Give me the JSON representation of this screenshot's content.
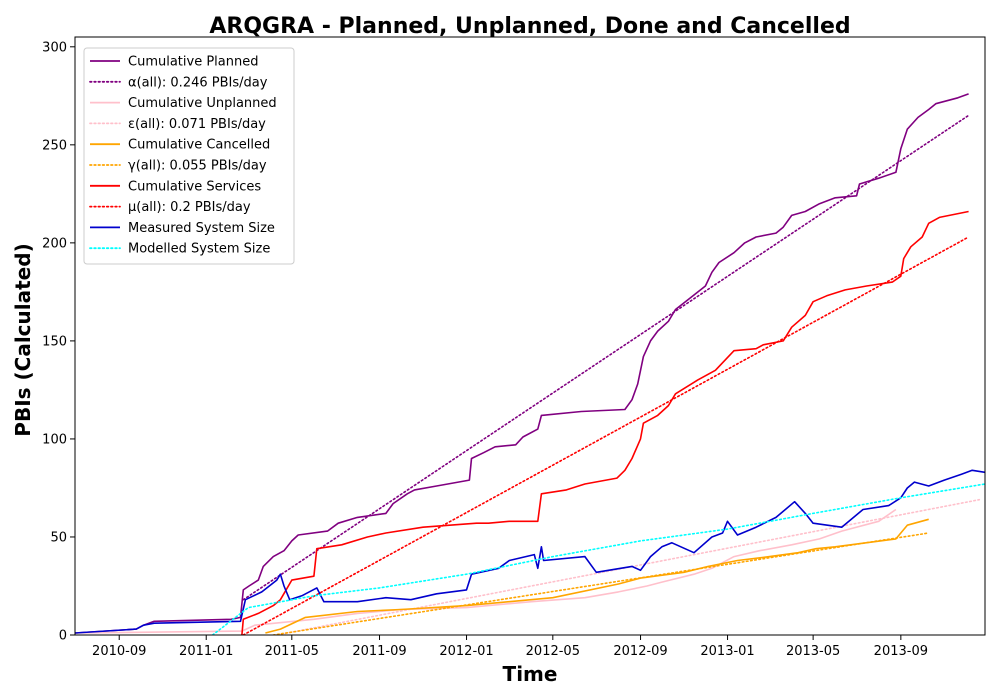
{
  "chart_data": {
    "type": "line",
    "title": "ARQGRA - Planned, Unplanned, Done  and Cancelled",
    "xlabel": "Time",
    "ylabel": "PBIs (Calculated)",
    "xlim": [
      "2010-07-01",
      "2013-12-28"
    ],
    "ylim": [
      0,
      305
    ],
    "xticks": [
      "2010-09",
      "2011-01",
      "2011-05",
      "2011-09",
      "2012-01",
      "2012-05",
      "2012-09",
      "2013-01",
      "2013-05",
      "2013-09"
    ],
    "yticks": [
      0,
      50,
      100,
      150,
      200,
      250,
      300
    ],
    "legend_position": "top-left",
    "grid": false,
    "series": [
      {
        "name": "Cumulative Planned",
        "color": "#800080",
        "style": "solid",
        "points": [
          [
            "2010-07-01",
            1
          ],
          [
            "2010-09-25",
            3
          ],
          [
            "2010-10-05",
            5
          ],
          [
            "2010-10-20",
            7
          ],
          [
            "2011-02-05",
            8
          ],
          [
            "2011-02-18",
            9
          ],
          [
            "2011-02-22",
            23
          ],
          [
            "2011-03-02",
            25
          ],
          [
            "2011-03-15",
            28
          ],
          [
            "2011-03-22",
            35
          ],
          [
            "2011-04-05",
            40
          ],
          [
            "2011-04-20",
            43
          ],
          [
            "2011-05-01",
            48
          ],
          [
            "2011-05-10",
            51
          ],
          [
            "2011-06-20",
            53
          ],
          [
            "2011-07-05",
            57
          ],
          [
            "2011-08-01",
            60
          ],
          [
            "2011-09-10",
            62
          ],
          [
            "2011-09-20",
            67
          ],
          [
            "2011-10-10",
            72
          ],
          [
            "2011-10-20",
            74
          ],
          [
            "2011-11-20",
            76
          ],
          [
            "2012-01-05",
            79
          ],
          [
            "2012-01-08",
            90
          ],
          [
            "2012-01-25",
            93
          ],
          [
            "2012-02-10",
            96
          ],
          [
            "2012-03-10",
            97
          ],
          [
            "2012-03-20",
            101
          ],
          [
            "2012-04-10",
            105
          ],
          [
            "2012-04-15",
            112
          ],
          [
            "2012-06-10",
            114
          ],
          [
            "2012-08-10",
            115
          ],
          [
            "2012-08-20",
            120
          ],
          [
            "2012-08-28",
            128
          ],
          [
            "2012-09-05",
            142
          ],
          [
            "2012-09-15",
            150
          ],
          [
            "2012-09-25",
            155
          ],
          [
            "2012-10-10",
            160
          ],
          [
            "2012-10-20",
            166
          ],
          [
            "2012-11-10",
            172
          ],
          [
            "2012-12-01",
            178
          ],
          [
            "2012-12-10",
            185
          ],
          [
            "2012-12-20",
            190
          ],
          [
            "2013-01-10",
            195
          ],
          [
            "2013-01-25",
            200
          ],
          [
            "2013-02-10",
            203
          ],
          [
            "2013-03-10",
            205
          ],
          [
            "2013-03-20",
            208
          ],
          [
            "2013-04-01",
            214
          ],
          [
            "2013-04-20",
            216
          ],
          [
            "2013-05-10",
            220
          ],
          [
            "2013-06-01",
            223
          ],
          [
            "2013-07-01",
            224
          ],
          [
            "2013-07-05",
            230
          ],
          [
            "2013-08-01",
            233
          ],
          [
            "2013-08-25",
            236
          ],
          [
            "2013-09-01",
            248
          ],
          [
            "2013-09-10",
            258
          ],
          [
            "2013-09-25",
            264
          ],
          [
            "2013-10-10",
            268
          ],
          [
            "2013-10-20",
            271
          ],
          [
            "2013-11-20",
            274
          ],
          [
            "2013-12-05",
            276
          ]
        ]
      },
      {
        "name": "α(all): 0.246 PBIs/day",
        "color": "#800080",
        "style": "dotted",
        "points": [
          [
            "2011-02-22",
            18
          ],
          [
            "2013-12-05",
            265
          ]
        ]
      },
      {
        "name": "Cumulative Unplanned",
        "color": "#ffc0cb",
        "style": "solid",
        "points": [
          [
            "2010-07-01",
            1
          ],
          [
            "2011-02-20",
            2
          ],
          [
            "2011-03-10",
            5
          ],
          [
            "2011-06-01",
            8
          ],
          [
            "2011-08-01",
            11
          ],
          [
            "2011-10-01",
            13
          ],
          [
            "2012-01-01",
            14
          ],
          [
            "2012-04-01",
            17
          ],
          [
            "2012-06-15",
            19
          ],
          [
            "2012-08-01",
            22
          ],
          [
            "2012-09-10",
            25
          ],
          [
            "2012-10-01",
            27
          ],
          [
            "2012-11-15",
            31
          ],
          [
            "2012-12-10",
            34
          ],
          [
            "2013-01-10",
            40
          ],
          [
            "2013-02-15",
            43
          ],
          [
            "2013-04-01",
            46
          ],
          [
            "2013-05-10",
            49
          ],
          [
            "2013-06-10",
            53
          ],
          [
            "2013-08-01",
            58
          ],
          [
            "2013-08-25",
            64
          ]
        ]
      },
      {
        "name": "ε(all): 0.071 PBIs/day",
        "color": "#ffc0cb",
        "style": "dotted",
        "points": [
          [
            "2011-04-10",
            0
          ],
          [
            "2013-12-20",
            69
          ]
        ]
      },
      {
        "name": "Cumulative Cancelled",
        "color": "#ffa500",
        "style": "solid",
        "points": [
          [
            "2011-03-25",
            1
          ],
          [
            "2011-04-15",
            3
          ],
          [
            "2011-05-20",
            9
          ],
          [
            "2011-08-01",
            12
          ],
          [
            "2011-10-01",
            13
          ],
          [
            "2012-01-01",
            15
          ],
          [
            "2012-03-01",
            17
          ],
          [
            "2012-05-01",
            19
          ],
          [
            "2012-08-01",
            26
          ],
          [
            "2012-09-01",
            29
          ],
          [
            "2012-11-01",
            32
          ],
          [
            "2012-12-05",
            35
          ],
          [
            "2013-01-15",
            38
          ],
          [
            "2013-03-01",
            40
          ],
          [
            "2013-04-10",
            42
          ],
          [
            "2013-05-05",
            44
          ],
          [
            "2013-06-01",
            45
          ],
          [
            "2013-08-25",
            49
          ],
          [
            "2013-09-10",
            56
          ],
          [
            "2013-10-10",
            59
          ]
        ]
      },
      {
        "name": "γ(all): 0.055 PBIs/day",
        "color": "#ffa500",
        "style": "dotted",
        "points": [
          [
            "2011-04-05",
            0
          ],
          [
            "2013-10-10",
            52
          ]
        ]
      },
      {
        "name": "Cumulative Services",
        "color": "#ff0000",
        "style": "solid",
        "points": [
          [
            "2011-02-20",
            0
          ],
          [
            "2011-02-22",
            8
          ],
          [
            "2011-03-15",
            11
          ],
          [
            "2011-04-05",
            15
          ],
          [
            "2011-04-15",
            18
          ],
          [
            "2011-05-01",
            28
          ],
          [
            "2011-06-01",
            30
          ],
          [
            "2011-06-05",
            44
          ],
          [
            "2011-07-10",
            46
          ],
          [
            "2011-08-15",
            50
          ],
          [
            "2011-09-10",
            52
          ],
          [
            "2011-11-01",
            55
          ],
          [
            "2012-01-15",
            57
          ],
          [
            "2012-02-01",
            57
          ],
          [
            "2012-03-01",
            58
          ],
          [
            "2012-04-10",
            58
          ],
          [
            "2012-04-15",
            72
          ],
          [
            "2012-05-20",
            74
          ],
          [
            "2012-06-15",
            77
          ],
          [
            "2012-07-30",
            80
          ],
          [
            "2012-08-10",
            84
          ],
          [
            "2012-08-20",
            90
          ],
          [
            "2012-09-01",
            100
          ],
          [
            "2012-09-05",
            108
          ],
          [
            "2012-09-25",
            112
          ],
          [
            "2012-10-10",
            117
          ],
          [
            "2012-10-20",
            123
          ],
          [
            "2012-11-20",
            130
          ],
          [
            "2012-12-15",
            135
          ],
          [
            "2013-01-10",
            145
          ],
          [
            "2013-02-10",
            146
          ],
          [
            "2013-02-20",
            148
          ],
          [
            "2013-03-20",
            150
          ],
          [
            "2013-04-01",
            157
          ],
          [
            "2013-04-20",
            163
          ],
          [
            "2013-05-01",
            170
          ],
          [
            "2013-05-20",
            173
          ],
          [
            "2013-06-15",
            176
          ],
          [
            "2013-07-15",
            178
          ],
          [
            "2013-08-20",
            180
          ],
          [
            "2013-09-01",
            183
          ],
          [
            "2013-09-05",
            192
          ],
          [
            "2013-09-15",
            198
          ],
          [
            "2013-10-01",
            203
          ],
          [
            "2013-10-10",
            210
          ],
          [
            "2013-10-25",
            213
          ],
          [
            "2013-12-05",
            216
          ]
        ]
      },
      {
        "name": "μ(all): 0.2 PBIs/day",
        "color": "#ff0000",
        "style": "dotted",
        "points": [
          [
            "2011-02-22",
            0
          ],
          [
            "2013-12-05",
            203
          ]
        ]
      },
      {
        "name": "Measured System Size",
        "color": "#0000cd",
        "style": "solid",
        "points": [
          [
            "2010-07-01",
            1
          ],
          [
            "2010-09-25",
            3
          ],
          [
            "2010-10-05",
            5
          ],
          [
            "2010-10-20",
            6
          ],
          [
            "2011-02-18",
            7
          ],
          [
            "2011-02-25",
            18
          ],
          [
            "2011-03-20",
            22
          ],
          [
            "2011-04-10",
            28
          ],
          [
            "2011-04-15",
            31
          ],
          [
            "2011-04-20",
            25
          ],
          [
            "2011-04-28",
            18
          ],
          [
            "2011-05-15",
            20
          ],
          [
            "2011-06-05",
            24
          ],
          [
            "2011-06-15",
            17
          ],
          [
            "2011-08-01",
            17
          ],
          [
            "2011-09-10",
            19
          ],
          [
            "2011-10-15",
            18
          ],
          [
            "2011-11-20",
            21
          ],
          [
            "2012-01-01",
            23
          ],
          [
            "2012-01-08",
            31
          ],
          [
            "2012-02-15",
            34
          ],
          [
            "2012-03-01",
            38
          ],
          [
            "2012-04-05",
            41
          ],
          [
            "2012-04-10",
            34
          ],
          [
            "2012-04-15",
            45
          ],
          [
            "2012-04-18",
            38
          ],
          [
            "2012-06-15",
            40
          ],
          [
            "2012-07-01",
            32
          ],
          [
            "2012-08-20",
            35
          ],
          [
            "2012-09-01",
            33
          ],
          [
            "2012-09-15",
            40
          ],
          [
            "2012-10-01",
            45
          ],
          [
            "2012-10-15",
            47
          ],
          [
            "2012-11-15",
            42
          ],
          [
            "2012-12-10",
            50
          ],
          [
            "2012-12-25",
            52
          ],
          [
            "2013-01-01",
            58
          ],
          [
            "2013-01-15",
            51
          ],
          [
            "2013-02-10",
            55
          ],
          [
            "2013-03-10",
            60
          ],
          [
            "2013-04-05",
            68
          ],
          [
            "2013-04-20",
            62
          ],
          [
            "2013-05-01",
            57
          ],
          [
            "2013-06-10",
            55
          ],
          [
            "2013-07-10",
            64
          ],
          [
            "2013-08-15",
            66
          ],
          [
            "2013-09-01",
            70
          ],
          [
            "2013-09-10",
            75
          ],
          [
            "2013-09-20",
            78
          ],
          [
            "2013-10-10",
            76
          ],
          [
            "2013-11-01",
            79
          ],
          [
            "2013-11-25",
            82
          ],
          [
            "2013-12-10",
            84
          ],
          [
            "2013-12-28",
            83
          ]
        ]
      },
      {
        "name": "Modelled System Size",
        "color": "#00ffff",
        "style": "dotted",
        "points": [
          [
            "2011-01-10",
            0
          ],
          [
            "2011-03-01",
            14
          ],
          [
            "2011-06-01",
            20
          ],
          [
            "2011-09-01",
            24
          ],
          [
            "2012-01-01",
            31
          ],
          [
            "2012-05-01",
            40
          ],
          [
            "2012-09-01",
            48
          ],
          [
            "2013-01-01",
            54
          ],
          [
            "2013-05-01",
            62
          ],
          [
            "2013-09-01",
            70
          ],
          [
            "2013-12-28",
            77
          ]
        ]
      }
    ]
  }
}
